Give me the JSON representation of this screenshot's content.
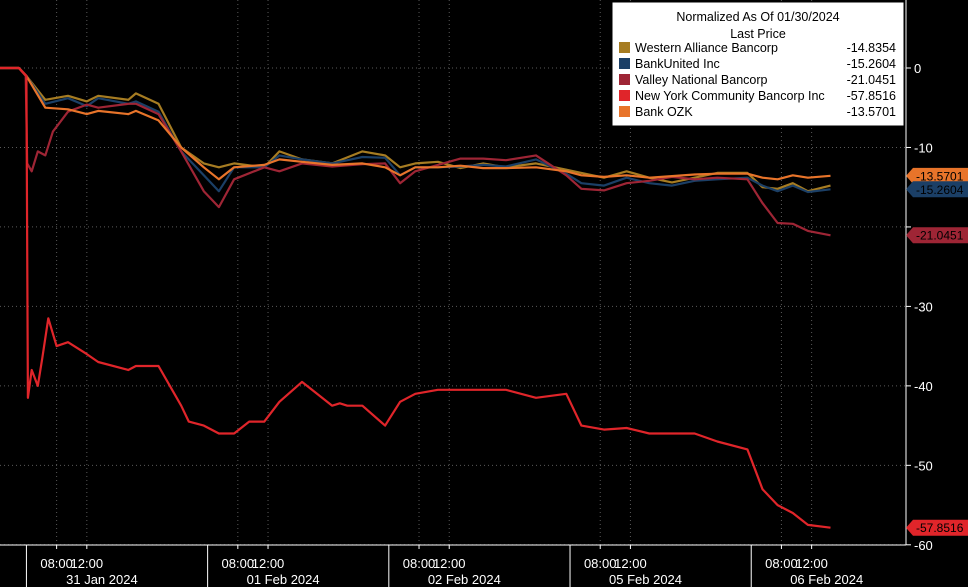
{
  "chart_data": {
    "type": "line",
    "legend": {
      "title": "Normalized As Of 01/30/2024",
      "subtitle": "Last Price",
      "placement": "top-right"
    },
    "ylim": [
      -62,
      8
    ],
    "yticks": [
      0,
      -10,
      -20,
      -30,
      -40,
      -50,
      -60
    ],
    "ytick_labels": [
      "0",
      "-10",
      "",
      "-30",
      "-40",
      "-50",
      "-60"
    ],
    "x_range_hours": [
      0,
      120
    ],
    "time_ticks": [
      {
        "x": 7.5,
        "label": "08:00"
      },
      {
        "x": 11.5,
        "label": "12:00"
      },
      {
        "x": 31.5,
        "label": "08:00"
      },
      {
        "x": 35.5,
        "label": "12:00"
      },
      {
        "x": 55.5,
        "label": "08:00"
      },
      {
        "x": 59.5,
        "label": "12:00"
      },
      {
        "x": 79.5,
        "label": "08:00"
      },
      {
        "x": 83.5,
        "label": "12:00"
      },
      {
        "x": 103.5,
        "label": "08:00"
      },
      {
        "x": 107.5,
        "label": "12:00"
      }
    ],
    "day_labels": [
      {
        "x": 13.5,
        "label": "31 Jan 2024"
      },
      {
        "x": 37.5,
        "label": "01 Feb 2024"
      },
      {
        "x": 61.5,
        "label": "02 Feb 2024"
      },
      {
        "x": 85.5,
        "label": "05 Feb 2024"
      },
      {
        "x": 109.5,
        "label": "06 Feb 2024"
      }
    ],
    "day_boundaries": [
      3.5,
      27.5,
      51.5,
      75.5,
      99.5
    ],
    "value_tags": [
      {
        "value": -13.5701,
        "label": "-13.5701",
        "color": "#e8742a"
      },
      {
        "value": -15.2604,
        "label": "-15.2604",
        "color": "#1b3f66"
      },
      {
        "value": -21.0451,
        "label": "-21.0451",
        "color": "#9e2535"
      },
      {
        "value": -57.8516,
        "label": "-57.8516",
        "color": "#e0252a"
      }
    ],
    "series": [
      {
        "name": "Western Alliance Bancorp",
        "last": "-14.8354",
        "color": "#a67c22",
        "x": [
          0,
          2.5,
          3.5,
          6,
          9,
          11.5,
          13,
          17,
          18,
          21,
          24,
          27,
          29,
          31,
          35,
          37,
          40,
          44,
          48,
          51,
          53,
          55,
          58,
          61,
          64,
          67,
          71,
          75,
          77,
          80,
          83,
          86,
          89,
          92,
          95,
          99,
          101,
          103,
          105,
          107,
          110
        ],
        "y": [
          0,
          0,
          -1,
          -4,
          -3.5,
          -4.2,
          -3.5,
          -4,
          -3.2,
          -4.5,
          -10,
          -12,
          -12.5,
          -12,
          -12.5,
          -10.5,
          -11.5,
          -12,
          -10.5,
          -11,
          -12.5,
          -12,
          -11.8,
          -12.6,
          -12,
          -12.5,
          -12,
          -12.8,
          -13.2,
          -13.8,
          -13,
          -13.8,
          -14.4,
          -13.8,
          -13.2,
          -13.2,
          -15,
          -15.2,
          -14.5,
          -15.5,
          -14.8
        ]
      },
      {
        "name": "BankUnited Inc",
        "last": "-15.2604",
        "color": "#1b3f66",
        "x": [
          0,
          2.5,
          3.5,
          6,
          9,
          11.5,
          13,
          17,
          18,
          21,
          24,
          27,
          29,
          31,
          35,
          37,
          40,
          44,
          48,
          51,
          53,
          55,
          58,
          61,
          64,
          67,
          71,
          75,
          77,
          80,
          83,
          86,
          89,
          92,
          95,
          99,
          101,
          103,
          105,
          107,
          110
        ],
        "y": [
          0,
          0,
          -1,
          -4.5,
          -3.8,
          -4.8,
          -3.8,
          -4.5,
          -4.2,
          -5.5,
          -10.5,
          -13.5,
          -15.5,
          -12.5,
          -12.5,
          -11,
          -11.5,
          -12,
          -11.2,
          -11.3,
          -13.5,
          -12.5,
          -12.5,
          -12.4,
          -12.2,
          -12.4,
          -11.5,
          -13.3,
          -14.5,
          -14.8,
          -13.8,
          -14.5,
          -14.8,
          -14.2,
          -14,
          -13.8,
          -14.8,
          -15.5,
          -14.8,
          -15.6,
          -15.26
        ]
      },
      {
        "name": "Valley National Bancorp",
        "last": "-21.0451",
        "color": "#9e2535",
        "x": [
          0,
          2.5,
          3.4,
          3.6,
          4.2,
          5,
          6,
          7,
          9,
          11.5,
          13,
          17,
          18,
          21,
          24,
          27,
          29,
          31,
          35,
          37,
          40,
          44,
          48,
          51,
          53,
          55,
          58,
          61,
          64,
          67,
          71,
          75,
          77,
          80,
          83,
          86,
          89,
          92,
          95,
          99,
          101,
          103,
          105,
          107,
          110
        ],
        "y": [
          0,
          0,
          -1,
          -12,
          -13,
          -10.5,
          -11,
          -8,
          -5.5,
          -4.6,
          -5,
          -4.5,
          -4.5,
          -5.8,
          -10.5,
          -15.5,
          -17.5,
          -14,
          -12.5,
          -13,
          -12,
          -12.4,
          -12.1,
          -12,
          -14.5,
          -13,
          -12.2,
          -11.4,
          -11.4,
          -11.6,
          -11,
          -13.5,
          -15.2,
          -15.4,
          -14.5,
          -14.2,
          -13.7,
          -14,
          -13.8,
          -14,
          -17,
          -19.5,
          -19.6,
          -20.5,
          -21.05
        ]
      },
      {
        "name": "New York Community Bancorp Inc",
        "last": "-57.8516",
        "color": "#e0252a",
        "x": [
          0,
          2.5,
          3.5,
          3.7,
          4.2,
          5,
          5.6,
          6.4,
          7.5,
          9,
          11.5,
          13,
          17,
          18,
          21,
          24,
          25,
          27,
          29,
          31,
          33,
          35,
          37,
          40,
          44,
          45,
          46,
          48,
          51,
          53,
          55,
          58,
          61,
          64,
          67,
          71,
          75,
          77,
          80,
          83,
          86,
          89,
          92,
          95,
          99,
          100,
          101,
          103,
          105,
          107,
          110
        ],
        "y": [
          0,
          0,
          -1,
          -41.5,
          -38,
          -40,
          -36.5,
          -31.5,
          -35,
          -34.5,
          -36,
          -37,
          -38,
          -37.5,
          -37.5,
          -42.5,
          -44.5,
          -45,
          -46,
          -46,
          -44.5,
          -44.5,
          -42,
          -39.5,
          -42.5,
          -42.2,
          -42.5,
          -42.5,
          -45,
          -42,
          -41,
          -40.5,
          -40.5,
          -40.5,
          -40.5,
          -41.5,
          -41,
          -45,
          -45.5,
          -45.3,
          -46,
          -46,
          -46,
          -47,
          -48,
          -50.5,
          -53,
          -55,
          -56,
          -57.5,
          -57.85
        ]
      },
      {
        "name": "Bank OZK",
        "last": "-13.5701",
        "color": "#e8742a",
        "x": [
          0,
          2.5,
          3.5,
          6,
          9,
          11.5,
          13,
          17,
          18,
          21,
          24,
          27,
          29,
          31,
          35,
          37,
          40,
          44,
          48,
          51,
          53,
          55,
          58,
          61,
          64,
          67,
          71,
          75,
          77,
          80,
          83,
          86,
          89,
          92,
          95,
          99,
          101,
          103,
          105,
          107,
          110
        ],
        "y": [
          0,
          0,
          -1,
          -5,
          -5.2,
          -5.8,
          -5.4,
          -5.8,
          -5.4,
          -6.6,
          -10,
          -12.5,
          -14,
          -12.5,
          -12.2,
          -11.5,
          -11.8,
          -12.2,
          -12,
          -12.5,
          -13.5,
          -12.5,
          -12.5,
          -12.3,
          -12.6,
          -12.6,
          -12.5,
          -13,
          -13.5,
          -13.7,
          -13.5,
          -13.8,
          -13.6,
          -13.4,
          -13.3,
          -13.3,
          -13.8,
          -14,
          -13.5,
          -13.8,
          -13.57
        ]
      }
    ]
  }
}
